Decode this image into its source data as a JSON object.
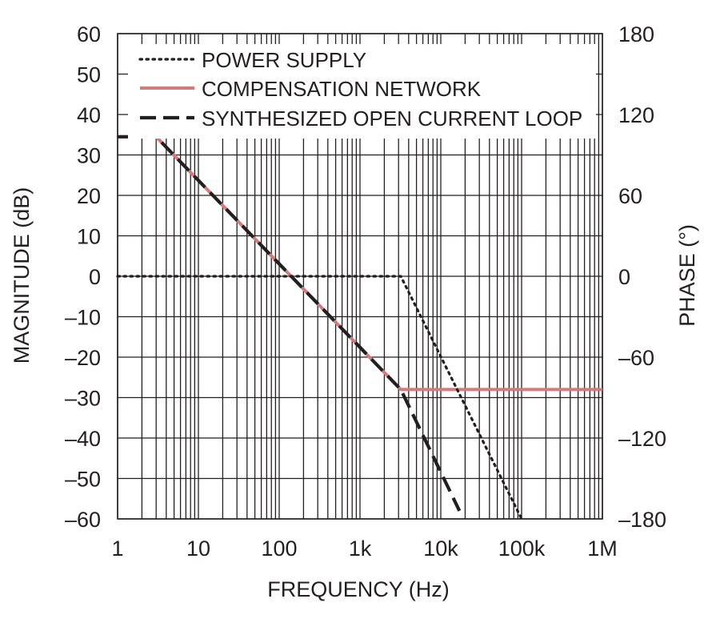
{
  "chart_data": {
    "type": "line",
    "xlabel": "FREQUENCY (Hz)",
    "ylabel": "MAGNITUDE (dB)",
    "y2label": "PHASE (°)",
    "x_scale": "log",
    "xlim": [
      1,
      1000000
    ],
    "ylim": [
      -60,
      60
    ],
    "y2lim": [
      -180,
      180
    ],
    "x_ticks": [
      1,
      10,
      100,
      1000,
      10000,
      100000,
      1000000
    ],
    "x_tick_labels": [
      "1",
      "10",
      "100",
      "1k",
      "10k",
      "100k",
      "1M"
    ],
    "y_ticks": [
      60,
      50,
      40,
      30,
      20,
      10,
      0,
      -10,
      -20,
      -30,
      -40,
      -50,
      -60
    ],
    "y_tick_labels": [
      "60",
      "50",
      "40",
      "30",
      "20",
      "10",
      "0",
      "–10",
      "–20",
      "–30",
      "–40",
      "–50",
      "–60"
    ],
    "y2_ticks": [
      180,
      120,
      60,
      0,
      -60,
      -120,
      -180
    ],
    "y2_tick_labels": [
      "180",
      "120",
      "60",
      "0",
      "–60",
      "–120",
      "–180"
    ],
    "grid": true,
    "legend_position": "top-left",
    "series": [
      {
        "name": "POWER SUPPLY",
        "style": "dotted",
        "color": "#231f20",
        "points": [
          [
            1,
            0
          ],
          [
            3200,
            0
          ],
          [
            100000,
            -60
          ]
        ]
      },
      {
        "name": "COMPENSATION NETWORK",
        "style": "solid",
        "color": "#d47a7a",
        "points": [
          [
            1,
            34.5
          ],
          [
            3,
            34.5
          ],
          [
            3200,
            -28
          ],
          [
            1000000,
            -28
          ]
        ]
      },
      {
        "name": "SYNTHESIZED OPEN CURRENT LOOP",
        "style": "dashed",
        "color": "#231f20",
        "points": [
          [
            1,
            34.5
          ],
          [
            3,
            34.5
          ],
          [
            3200,
            -28
          ],
          [
            17000,
            -58
          ]
        ]
      }
    ]
  }
}
